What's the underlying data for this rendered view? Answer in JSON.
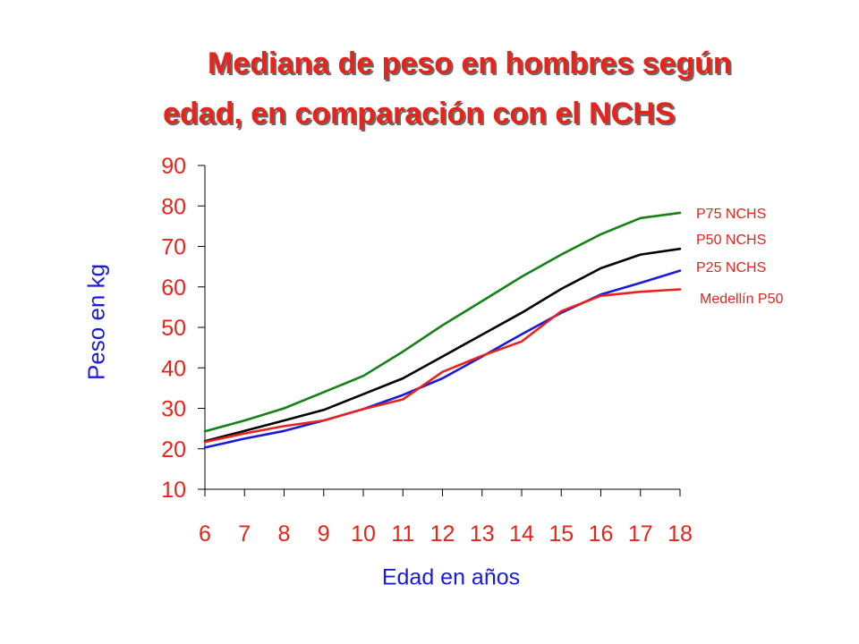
{
  "title_lines": [
    "Mediana de peso en hombres según",
    "edad, en comparación con el NCHS"
  ],
  "colors": {
    "title": "#e8231c",
    "axis_label": "#1a1adb",
    "tick_x": "#e8231c",
    "tick_y": "#e8231c",
    "legend": "#e8231c"
  },
  "chart_data": {
    "type": "line",
    "title": "Mediana de peso en hombres según edad, en comparación con el NCHS",
    "xlabel": "Edad en años",
    "ylabel": "Peso en kg",
    "x": [
      6,
      7,
      8,
      9,
      10,
      11,
      12,
      13,
      14,
      15,
      16,
      17,
      18
    ],
    "xlim": [
      6,
      18
    ],
    "ylim": [
      10,
      90
    ],
    "y_ticks": [
      10,
      20,
      30,
      40,
      50,
      60,
      70,
      80,
      90
    ],
    "grid": false,
    "legend_position": "right",
    "series": [
      {
        "name": "P75 NCHS",
        "color": "#148214",
        "values": [
          24.3,
          27.0,
          30.0,
          34.0,
          38.0,
          44.0,
          50.5,
          56.5,
          62.5,
          68.0,
          73.0,
          77.0,
          78.3
        ]
      },
      {
        "name": "P50 NCHS",
        "color": "#000000",
        "values": [
          21.9,
          24.4,
          27.0,
          29.6,
          33.5,
          37.4,
          42.8,
          48.2,
          53.6,
          59.5,
          64.6,
          68.0,
          69.4
        ]
      },
      {
        "name": "P25 NCHS",
        "color": "#1a1adb",
        "values": [
          20.3,
          22.5,
          24.4,
          27.0,
          29.8,
          33.3,
          37.4,
          42.8,
          48.3,
          53.6,
          58.1,
          61.0,
          64.0
        ]
      },
      {
        "name": "Medellín P50",
        "color": "#e8231c",
        "values": [
          21.7,
          23.8,
          25.6,
          27.0,
          29.8,
          32.2,
          39.0,
          43.0,
          46.5,
          54.0,
          57.8,
          58.8,
          59.4
        ]
      }
    ]
  }
}
